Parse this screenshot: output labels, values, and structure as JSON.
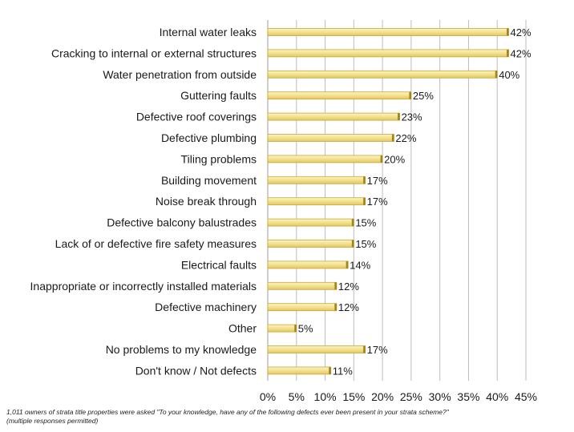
{
  "chart_data": {
    "type": "bar",
    "orientation": "horizontal",
    "categories": [
      "Internal water leaks",
      "Cracking to internal or external structures",
      "Water penetration from outside",
      "Guttering faults",
      "Defective roof coverings",
      "Defective plumbing",
      "Tiling problems",
      "Building movement",
      "Noise break through",
      "Defective balcony balustrades",
      "Lack of or defective fire safety measures",
      "Electrical faults",
      "Inappropriate or incorrectly installed materials",
      "Defective machinery",
      "Other",
      "No problems to my knowledge",
      "Don't know / Not defects"
    ],
    "values": [
      42,
      42,
      40,
      25,
      23,
      22,
      20,
      17,
      17,
      15,
      15,
      14,
      12,
      12,
      5,
      17,
      11
    ],
    "value_labels": [
      "42%",
      "42%",
      "40%",
      "25%",
      "23%",
      "22%",
      "20%",
      "17%",
      "17%",
      "15%",
      "15%",
      "14%",
      "12%",
      "12%",
      "5%",
      "17%",
      "11%"
    ],
    "xlim": [
      0,
      45
    ],
    "xticks": [
      "0%",
      "5%",
      "10%",
      "15%",
      "20%",
      "25%",
      "30%",
      "35%",
      "40%",
      "45%"
    ],
    "grid": true,
    "bar_color": "#f3e08a",
    "bar_edge_color": "#a38418"
  },
  "footnote": {
    "line1": "1,011 owners of strata title properties were asked \"To your knowledge, have any of the following defects ever been present in your strata scheme?\"",
    "line2": "(multiple responses permitted)"
  }
}
